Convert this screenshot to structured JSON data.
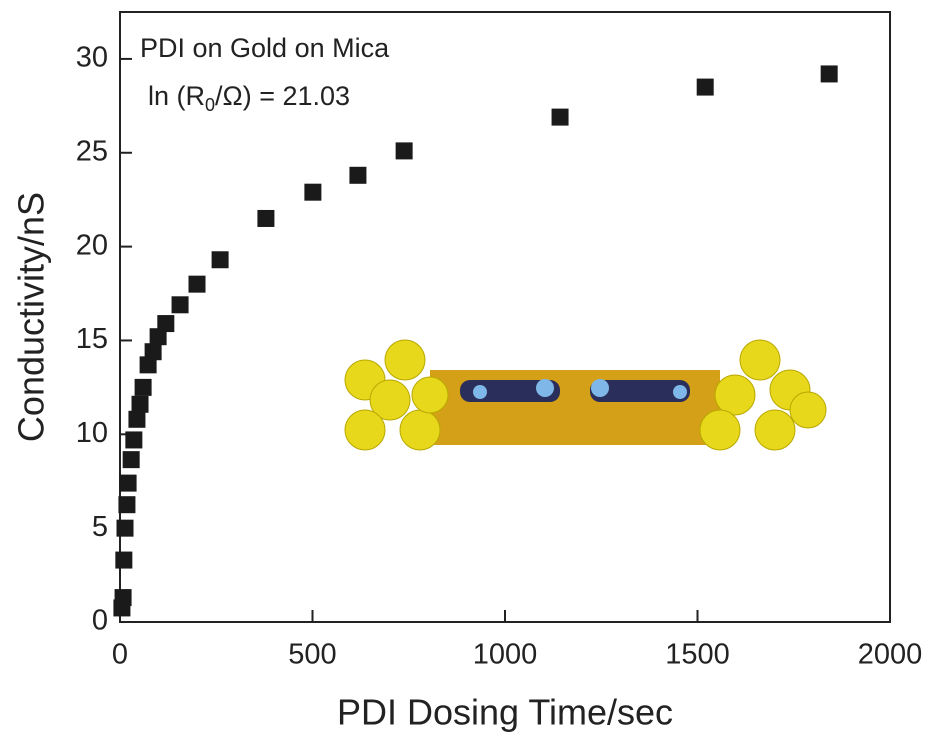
{
  "chart_data": {
    "type": "scatter",
    "x_label": "PDI Dosing Time/sec",
    "y_label": "Conductivity/nS",
    "annotations": [
      "PDI on Gold on Mica",
      "ln (R",
      "0",
      "/Ω) = 21.03"
    ],
    "series": [
      {
        "color": "#1a1a1a",
        "x": [
          5,
          8,
          10,
          13,
          18,
          21,
          29,
          36,
          44,
          52,
          60,
          73,
          86,
          99,
          119,
          156,
          200,
          260,
          379,
          501,
          618,
          738,
          1143,
          1520,
          1842
        ],
        "values": [
          0.75,
          1.3,
          3.3,
          5.0,
          6.25,
          7.4,
          8.65,
          9.7,
          10.8,
          11.6,
          12.5,
          13.7,
          14.4,
          15.2,
          15.9,
          16.9,
          18.0,
          19.3,
          21.5,
          22.9,
          23.8,
          25.1,
          26.9,
          28.5,
          29.2
        ]
      }
    ],
    "xlim": [
      0,
      2000
    ],
    "xticks": [
      0,
      500,
      1000,
      1500,
      2000
    ],
    "ylim": [
      0,
      32.5
    ],
    "yticks": [
      0,
      5,
      10,
      15,
      20,
      25,
      30
    ],
    "grid": false
  }
}
